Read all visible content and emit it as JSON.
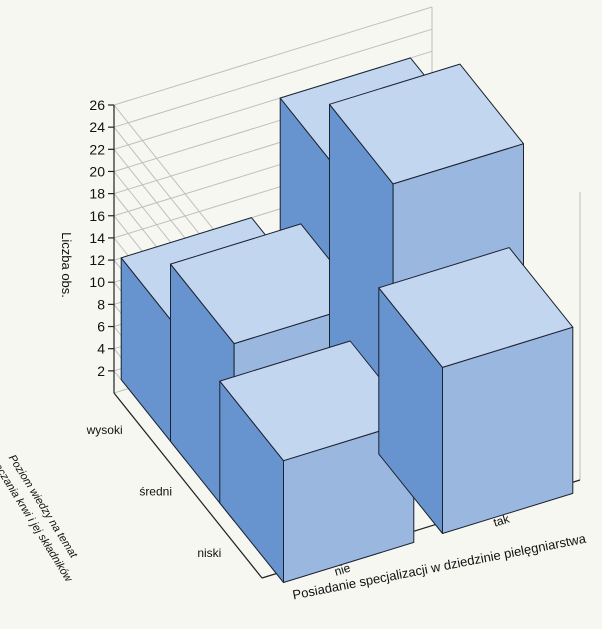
{
  "chart_data": {
    "type": "bar3d",
    "title": "",
    "xlabel": "Posiadanie specjalizacji w dziedzinie pielęgniarstwa",
    "ylabel": "Poziom wiedzy na temat przetaczania krwi i jej składników",
    "zlabel": "Liczba obs.",
    "x_categories": [
      "nie",
      "tak"
    ],
    "y_categories": [
      "wysoki",
      "średni",
      "niski"
    ],
    "zlim": [
      0,
      26
    ],
    "z_ticks": [
      2,
      4,
      6,
      8,
      10,
      12,
      14,
      16,
      18,
      20,
      22,
      24,
      26
    ],
    "bars": [
      {
        "x": "nie",
        "y": "wysoki",
        "value": 11
      },
      {
        "x": "tak",
        "y": "wysoki",
        "value": 21
      },
      {
        "x": "nie",
        "y": "średni",
        "value": 16
      },
      {
        "x": "tak",
        "y": "średni",
        "value": 26
      },
      {
        "x": "nie",
        "y": "niski",
        "value": 11
      },
      {
        "x": "tak",
        "y": "niski",
        "value": 15
      }
    ],
    "colors": {
      "front": "#9ab7e0",
      "side": "#6794cf",
      "top": "#c3d6f0"
    },
    "grid": true
  }
}
